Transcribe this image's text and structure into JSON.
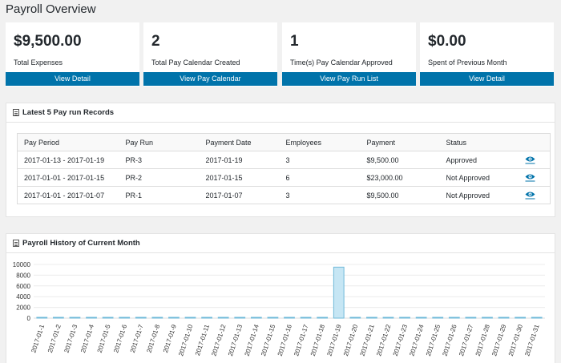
{
  "page": {
    "title": "Payroll Overview"
  },
  "cards": [
    {
      "value": "$9,500.00",
      "label": "Total Expenses",
      "button": "View Detail"
    },
    {
      "value": "2",
      "label": "Total Pay Calendar Created",
      "button": "View Pay Calendar"
    },
    {
      "value": "1",
      "label": "Time(s) Pay Calendar Approved",
      "button": "View Pay Run List"
    },
    {
      "value": "$0.00",
      "label": "Spent of Previous Month",
      "button": "View Detail"
    }
  ],
  "records": {
    "title": "Latest 5 Pay run Records",
    "columns": [
      "Pay Period",
      "Pay Run",
      "Payment Date",
      "Employees",
      "Payment",
      "Status"
    ],
    "rows": [
      [
        "2017-01-13 - 2017-01-19",
        "PR-3",
        "2017-01-19",
        "3",
        "$9,500.00",
        "Approved"
      ],
      [
        "2017-01-01 - 2017-01-15",
        "PR-2",
        "2017-01-15",
        "6",
        "$23,000.00",
        "Not Approved"
      ],
      [
        "2017-01-01 - 2017-01-07",
        "PR-1",
        "2017-01-07",
        "3",
        "$9,500.00",
        "Not Approved"
      ]
    ],
    "view_icon": "eye-icon"
  },
  "history": {
    "title": "Payroll History of Current Month"
  },
  "colors": {
    "accent": "#0073aa",
    "bar_fill": "#c6e6f4",
    "bar_stroke": "#6fb9d9"
  },
  "chart_data": {
    "type": "bar",
    "title": "",
    "xlabel": "",
    "ylabel": "",
    "ylim": [
      0,
      10000
    ],
    "yticks": [
      0,
      2000,
      4000,
      6000,
      8000,
      10000
    ],
    "grid": true,
    "categories": [
      "2017-01-1",
      "2017-01-2",
      "2017-01-3",
      "2017-01-4",
      "2017-01-5",
      "2017-01-6",
      "2017-01-7",
      "2017-01-8",
      "2017-01-9",
      "2017-01-10",
      "2017-01-11",
      "2017-01-12",
      "2017-01-13",
      "2017-01-14",
      "2017-01-15",
      "2017-01-16",
      "2017-01-17",
      "2017-01-18",
      "2017-01-19",
      "2017-01-20",
      "2017-01-21",
      "2017-01-22",
      "2017-01-23",
      "2017-01-24",
      "2017-01-25",
      "2017-01-26",
      "2017-01-27",
      "2017-01-28",
      "2017-01-29",
      "2017-01-30",
      "2017-01-31"
    ],
    "values": [
      0,
      0,
      0,
      0,
      0,
      0,
      0,
      0,
      0,
      0,
      0,
      0,
      0,
      0,
      0,
      0,
      0,
      0,
      9500,
      0,
      0,
      0,
      0,
      0,
      0,
      0,
      0,
      0,
      0,
      0,
      0
    ]
  }
}
